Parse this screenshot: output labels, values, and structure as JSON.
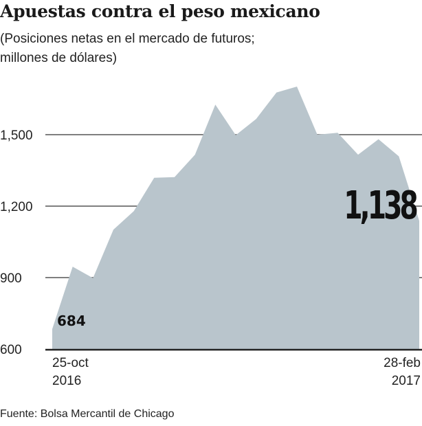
{
  "title": "Apuestas contra el peso mexicano",
  "subtitle_line1": "(Posiciones netas en el mercado de futuros;",
  "subtitle_line2": "millones de dólares)",
  "source": "Fuente: Bolsa Mercantil de Chicago",
  "chart_data": {
    "type": "area",
    "title": "Apuestas contra el peso mexicano",
    "ylabel": "",
    "xlabel": "",
    "ylim": [
      600,
      1750
    ],
    "yticks": [
      600,
      900,
      1200,
      1500
    ],
    "ytick_labels": [
      "600",
      "900",
      "1,200",
      "1,500"
    ],
    "grid": true,
    "fill_color": "#b9c5cc",
    "x_start_label": {
      "line1": "25-oct",
      "line2": "2016"
    },
    "x_end_label": {
      "line1": "28-feb",
      "line2": "2017"
    },
    "x": [
      "2016-10-25",
      "2016-11-01",
      "2016-11-08",
      "2016-11-15",
      "2016-11-22",
      "2016-11-29",
      "2016-12-06",
      "2016-12-13",
      "2016-12-20",
      "2016-12-27",
      "2017-01-03",
      "2017-01-10",
      "2017-01-17",
      "2017-01-24",
      "2017-01-31",
      "2017-02-07",
      "2017-02-14",
      "2017-02-21",
      "2017-02-28"
    ],
    "values": [
      684,
      946,
      898,
      1101,
      1179,
      1319,
      1322,
      1416,
      1626,
      1498,
      1566,
      1677,
      1702,
      1500,
      1508,
      1416,
      1481,
      1409,
      1138
    ],
    "annotations": {
      "start": "684",
      "end": "1,138"
    }
  }
}
